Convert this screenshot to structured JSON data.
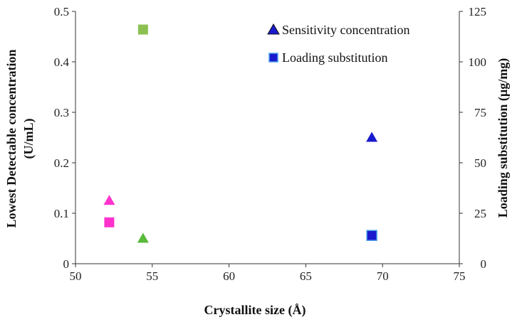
{
  "chart_data": {
    "type": "scatter",
    "xlabel": "Crystallite size (Å)",
    "ylabel_left_line1": "Lowest Detectable concentration",
    "ylabel_left_line2": "(U/mL)",
    "ylabel_right": "Loading substitution (µg/mg)",
    "xlim": [
      50,
      75
    ],
    "ylim_left": [
      0,
      0.5
    ],
    "ylim_right": [
      0,
      125
    ],
    "x_ticks": [
      "50",
      "55",
      "60",
      "65",
      "70",
      "75"
    ],
    "y_left_ticks": [
      "0",
      "0.1",
      "0.2",
      "0.3",
      "0.4",
      "0.5"
    ],
    "y_right_ticks": [
      "0",
      "25",
      "50",
      "75",
      "100",
      "125"
    ],
    "grid": false,
    "legend_position": "top-right",
    "series": [
      {
        "name": "Sensitivity concentration",
        "marker": "triangle",
        "axis": "left",
        "legend_color": "#1a1acd",
        "points": [
          {
            "x": 52.2,
            "y": 0.125,
            "color": "#ff33cc"
          },
          {
            "x": 54.4,
            "y": 0.05,
            "color": "#5aba3c"
          },
          {
            "x": 69.3,
            "y": 0.25,
            "color": "#1a1acd"
          }
        ]
      },
      {
        "name": "Loading substitution",
        "marker": "square",
        "axis": "right",
        "legend_color": "#1a1acd",
        "points": [
          {
            "x": 52.2,
            "y": 20.5,
            "color": "#ff33cc"
          },
          {
            "x": 54.4,
            "y": 116,
            "color": "#8cc152"
          },
          {
            "x": 69.3,
            "y": 14,
            "color": "#1a1acd"
          }
        ]
      }
    ]
  }
}
